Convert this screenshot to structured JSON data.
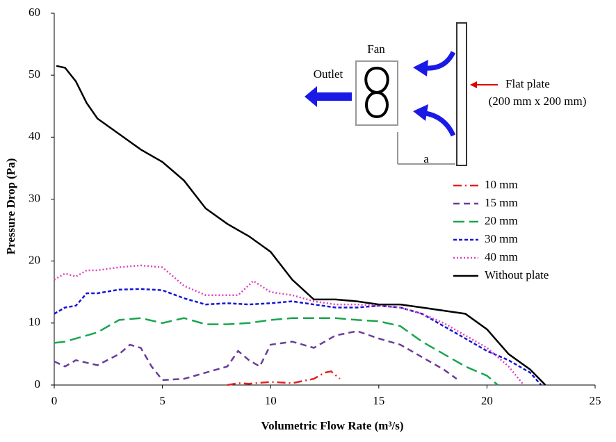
{
  "chart_data": {
    "type": "line",
    "xlabel": "Volumetric Flow Rate (m³/s)",
    "ylabel": "Pressure Drop (Pa)",
    "xlim": [
      0,
      25
    ],
    "xticks": [
      0,
      5,
      10,
      15,
      20,
      25
    ],
    "ylim": [
      0,
      60
    ],
    "yticks": [
      0,
      10,
      20,
      30,
      40,
      50,
      60
    ],
    "grid": false,
    "legend": "center right",
    "annotations": [
      "Fan",
      "Outlet",
      "Flat plate",
      "(200 mm x 200 mm)",
      "a"
    ],
    "series": [
      {
        "name": "10 mm",
        "color": "#e8201c",
        "dash": "12 5 2 5",
        "x": [
          8,
          8.5,
          9,
          10,
          11,
          12,
          12.5,
          12.8,
          13.2
        ],
        "values": [
          0,
          0.3,
          0.2,
          0.5,
          0.3,
          1,
          2,
          2.2,
          1
        ]
      },
      {
        "name": "15 mm",
        "color": "#6a3d9a",
        "dash": "9 6",
        "x": [
          0,
          0.5,
          1,
          2,
          3,
          3.5,
          4,
          4.5,
          5,
          6,
          7,
          8,
          8.5,
          9,
          9.5,
          10,
          11,
          12,
          13,
          14,
          15,
          16,
          17,
          18,
          18.6
        ],
        "values": [
          3.8,
          3,
          4,
          3.2,
          5,
          6.5,
          6,
          3,
          0.8,
          1,
          2,
          3,
          5.5,
          4,
          3,
          6.5,
          7,
          6,
          8,
          8.7,
          7.5,
          6.5,
          4.5,
          2.5,
          1
        ]
      },
      {
        "name": "20 mm",
        "color": "#1aa550",
        "dash": "16 7",
        "x": [
          0,
          0.5,
          1,
          1.5,
          2,
          3,
          4,
          5,
          6,
          7,
          8,
          9,
          10,
          11,
          12,
          13,
          14,
          15,
          16,
          17,
          18,
          19,
          20,
          20.5
        ],
        "values": [
          6.8,
          7,
          7.5,
          8,
          8.5,
          10.5,
          10.8,
          10,
          10.8,
          9.8,
          9.8,
          10,
          10.5,
          10.8,
          10.8,
          10.8,
          10.5,
          10.3,
          9.5,
          7,
          5,
          3,
          1.5,
          0
        ]
      },
      {
        "name": "30 mm",
        "color": "#1515d6",
        "dash": "5 3",
        "x": [
          0,
          0.5,
          1,
          1.5,
          2,
          3,
          4,
          5,
          6,
          7,
          8,
          9,
          10,
          11,
          12,
          13,
          14,
          15,
          16,
          17,
          18,
          19,
          20,
          21,
          22,
          22.5
        ],
        "values": [
          11.5,
          12.5,
          12.8,
          14.8,
          14.8,
          15.4,
          15.5,
          15.3,
          14,
          13,
          13.2,
          13,
          13.2,
          13.5,
          13,
          12.5,
          12.5,
          12.8,
          12.5,
          11.5,
          9.5,
          7.5,
          5.5,
          4,
          2,
          0
        ]
      },
      {
        "name": "40 mm",
        "color": "#e040c0",
        "dash": "2 3",
        "x": [
          0,
          0.5,
          1,
          1.5,
          2,
          3,
          4,
          5,
          6,
          7,
          8.5,
          9.2,
          10,
          11,
          12,
          13,
          14,
          15,
          16,
          17,
          18,
          19,
          20,
          21,
          21.7
        ],
        "values": [
          17,
          18,
          17.5,
          18.5,
          18.5,
          19,
          19.3,
          19,
          16,
          14.5,
          14.5,
          16.8,
          15,
          14.5,
          13.5,
          13,
          13,
          12.8,
          12.5,
          11.5,
          10,
          8,
          6,
          3,
          0
        ]
      },
      {
        "name": "Without plate",
        "color": "#000000",
        "dash": "none",
        "x": [
          0.1,
          0.5,
          1,
          1.5,
          2,
          3,
          4,
          5,
          6,
          7,
          8,
          9,
          10,
          11,
          12,
          13,
          14,
          15,
          16,
          17,
          18,
          19,
          20,
          21,
          22,
          22.7
        ],
        "values": [
          51.5,
          51.2,
          49,
          45.5,
          43,
          40.5,
          38,
          36,
          33,
          28.5,
          26,
          24,
          21.5,
          17,
          13.8,
          13.8,
          13.5,
          13,
          13,
          12.5,
          12,
          11.5,
          9,
          5,
          2.5,
          0
        ]
      }
    ]
  }
}
